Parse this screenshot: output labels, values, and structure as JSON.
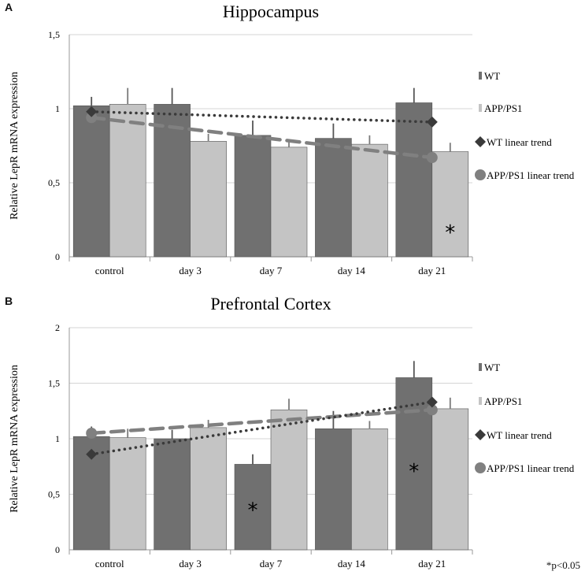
{
  "footnote": "*p<0.05",
  "legend_labels": {
    "wt": "WT",
    "app": "APP/PS1",
    "wt_trend": "WT linear trend",
    "app_trend": "APP/PS1 linear trend"
  },
  "colors": {
    "wt": "#707070",
    "app": "#c4c4c4",
    "wt_trend": "#3a3a3a",
    "app_trend": "#808080",
    "axis": "#999999",
    "grid": "#d4d4d4"
  },
  "chart_data": [
    {
      "panel": "A",
      "type": "bar",
      "title": "Hippocampus",
      "ylabel": "Relative LepR mRNA expression",
      "xlabel": "",
      "ylim": [
        0,
        1.5
      ],
      "yticks": [
        0,
        0.5,
        1,
        1.5
      ],
      "ytick_labels": [
        "0",
        "0,5",
        "1",
        "1,5"
      ],
      "grid": true,
      "legend": "right",
      "categories": [
        "control",
        "day 3",
        "day 7",
        "day 14",
        "day 21"
      ],
      "series": [
        {
          "name": "WT",
          "values": [
            1.02,
            1.03,
            0.82,
            0.8,
            1.04
          ],
          "errors": [
            0.06,
            0.11,
            0.1,
            0.1,
            0.1
          ]
        },
        {
          "name": "APP/PS1",
          "values": [
            1.03,
            0.78,
            0.74,
            0.76,
            0.71
          ],
          "errors": [
            0.11,
            0.05,
            0.04,
            0.06,
            0.06
          ]
        }
      ],
      "trends": [
        {
          "name": "WT linear trend",
          "start": 0.98,
          "end": 0.91
        },
        {
          "name": "APP/PS1 linear trend",
          "start": 0.94,
          "end": 0.67
        }
      ],
      "annotations": [
        {
          "text": "*",
          "category": "day 21",
          "series": "APP/PS1",
          "y": 0.18
        }
      ]
    },
    {
      "panel": "B",
      "type": "bar",
      "title": "Prefrontal Cortex",
      "ylabel": "Relative LepR mRNA expression",
      "xlabel": "",
      "ylim": [
        0,
        2
      ],
      "yticks": [
        0,
        0.5,
        1,
        1.5,
        2
      ],
      "ytick_labels": [
        "0",
        "0,5",
        "1",
        "1,5",
        "2"
      ],
      "grid": true,
      "legend": "right",
      "categories": [
        "control",
        "day 3",
        "day 7",
        "day 14",
        "day 21"
      ],
      "series": [
        {
          "name": "WT",
          "values": [
            1.02,
            1.0,
            0.77,
            1.09,
            1.55
          ],
          "errors": [
            0.09,
            0.08,
            0.09,
            0.16,
            0.15
          ]
        },
        {
          "name": "APP/PS1",
          "values": [
            1.01,
            1.1,
            1.26,
            1.09,
            1.27
          ],
          "errors": [
            0.08,
            0.07,
            0.1,
            0.07,
            0.1
          ]
        }
      ],
      "trends": [
        {
          "name": "WT linear trend",
          "start": 0.86,
          "end": 1.33
        },
        {
          "name": "APP/PS1 linear trend",
          "start": 1.05,
          "end": 1.26
        }
      ],
      "annotations": [
        {
          "text": "*",
          "category": "day 7",
          "series": "WT",
          "y": 0.38
        },
        {
          "text": "*",
          "category": "day 21",
          "series": "WT",
          "y": 0.73
        }
      ]
    }
  ]
}
